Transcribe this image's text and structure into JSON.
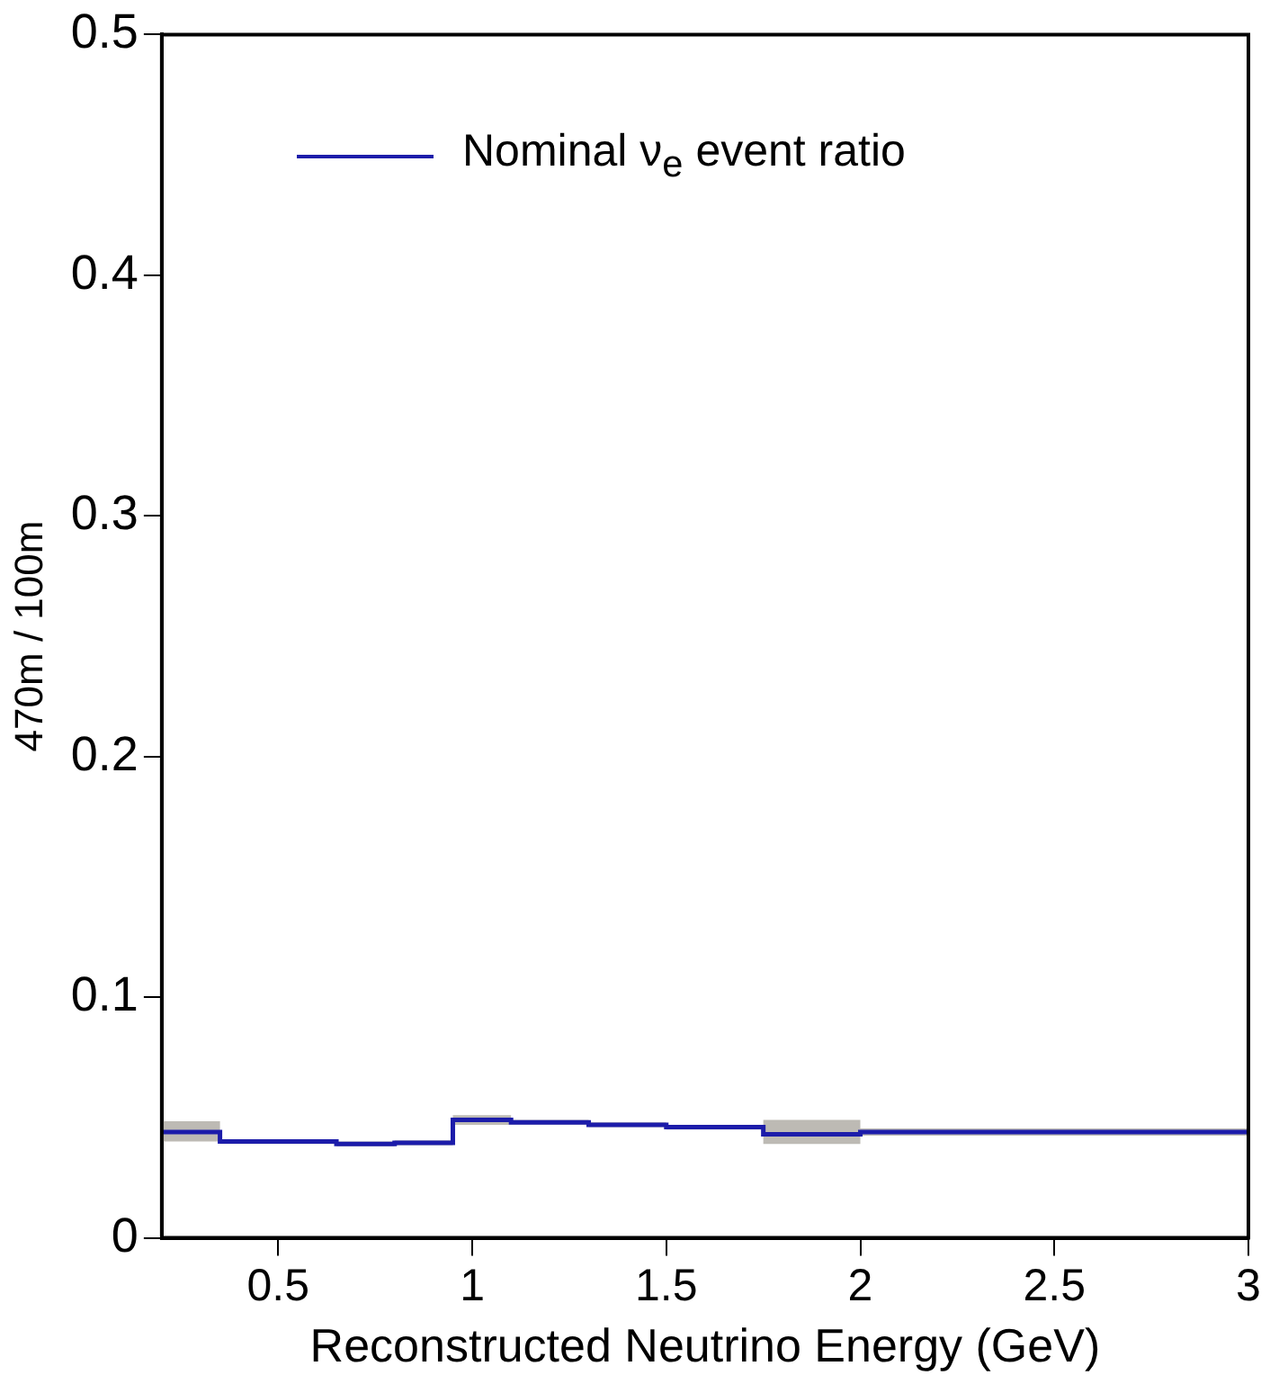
{
  "chart_data": {
    "type": "step",
    "xlabel": "Reconstructed Neutrino Energy (GeV)",
    "ylabel": "470m / 100m",
    "x": [
      0.2,
      0.35,
      0.5,
      0.65,
      0.8,
      0.95,
      1.1,
      1.3,
      1.5,
      1.75,
      2,
      3
    ],
    "series": [
      {
        "name": "Nominal ν$_{e}$ event ratio",
        "color": "#1c1caa",
        "values": [
          0.044,
          0.04,
          0.04,
          0.039,
          0.0395,
          0.049,
          0.048,
          0.047,
          0.046,
          0.043,
          0.044,
          0.044
        ],
        "lower": [
          0.04,
          0.039,
          0.039,
          0.038,
          0.0385,
          0.047,
          0.047,
          0.046,
          0.045,
          0.039,
          0.0425,
          0.0425
        ],
        "upper": [
          0.0485,
          0.041,
          0.041,
          0.04,
          0.0405,
          0.051,
          0.049,
          0.048,
          0.047,
          0.049,
          0.0455,
          0.0455
        ]
      }
    ],
    "xlim": [
      0.2,
      3
    ],
    "xticks": [
      0.5,
      1,
      1.5,
      2,
      2.5,
      3
    ],
    "ylim": [
      0,
      0.5
    ],
    "yticks": [
      0,
      0.1,
      0.2,
      0.3,
      0.4,
      0.5
    ],
    "legend": "top left"
  }
}
